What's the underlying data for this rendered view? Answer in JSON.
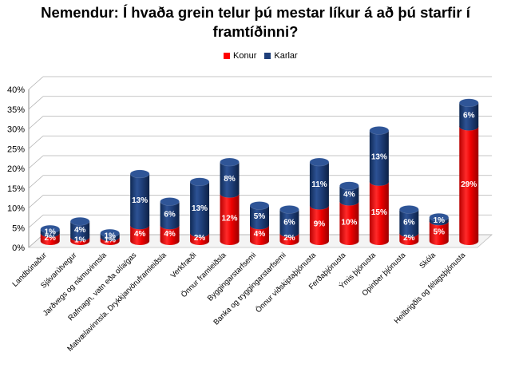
{
  "chart_data": {
    "type": "bar",
    "stacked": true,
    "style": "3d-cylinder",
    "title_lines": [
      "Nemendur: Í hvaða grein telur þú mestar líkur á að þú starfir í",
      "framtíðinni?"
    ],
    "xlabel": "",
    "ylabel": "",
    "ylim": [
      0,
      40
    ],
    "y_ticks": [
      "0%",
      "5%",
      "10%",
      "15%",
      "20%",
      "25%",
      "30%",
      "35%",
      "40%"
    ],
    "grid": true,
    "legend_position": "top",
    "categories": [
      "Landbúnaður",
      "Sjávarútvegur",
      "Jarðvegs og námuvinnsla",
      "Rafmagn, vatn eða olía/gas",
      "Matvælavinnsla. Drykkjarvöruframleiðsla",
      "Verkfræði",
      "Önnur framleiðsla",
      "Byggingarstarfsemi",
      "Banka og tryggingarstarfsemi",
      "Önnur viðskiptaþjónusta",
      "Ferðaþjónusta",
      "Ýmis þjónusta",
      "Opinber þjónusta",
      "Skóla",
      "Heilbrigðis og félagsþjónusta"
    ],
    "series": [
      {
        "name": "Konur",
        "color": "#ff0000",
        "values": [
          2,
          1,
          1,
          4,
          4,
          2,
          12,
          4,
          2,
          9,
          10,
          15,
          2,
          5,
          29
        ],
        "labels": [
          "2%",
          "1%",
          "1%",
          "4%",
          "4%",
          "2%",
          "12%",
          "4%",
          "2%",
          "9%",
          "10%",
          "15%",
          "2%",
          "5%",
          "29%"
        ]
      },
      {
        "name": "Karlar",
        "color": "#1f3f7a",
        "values": [
          1,
          4,
          1,
          13,
          6,
          13,
          8,
          5,
          6,
          11,
          4,
          13,
          6,
          1,
          6
        ],
        "labels": [
          "1%",
          "4%",
          "1%",
          "13%",
          "6%",
          "13%",
          "8%",
          "5%",
          "6%",
          "11%",
          "4%",
          "13%",
          "6%",
          "1%",
          "6%"
        ]
      }
    ]
  }
}
